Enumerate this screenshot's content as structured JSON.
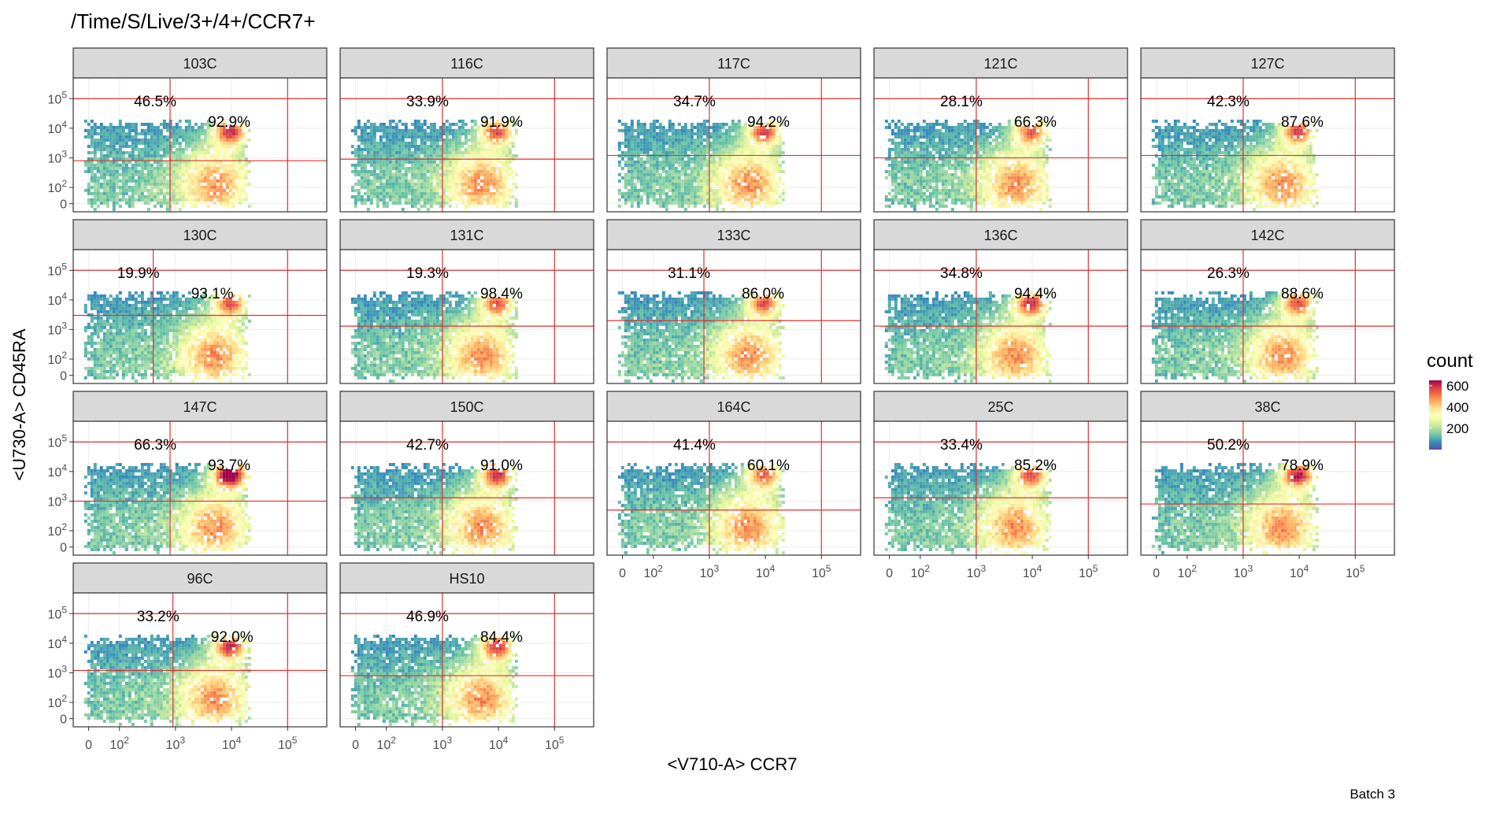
{
  "chart_data": {
    "type": "heatmap",
    "subtype": "faceted 2D density (flow cytometry)",
    "title": "/Time/S/Live/3+/4+/CCR7+",
    "xlabel": "<V710-A> CCR7",
    "ylabel": "<U730-A> CD45RA",
    "caption": "Batch 3",
    "legend": {
      "title": "count",
      "position": "right",
      "ticks": [
        "600",
        "400",
        "200"
      ],
      "tick_values": [
        600,
        400,
        200
      ],
      "range": [
        0,
        650
      ],
      "colors": [
        "#5E4FA2",
        "#3288BD",
        "#66C2A5",
        "#ABDDA4",
        "#E6F598",
        "#FFFFBF",
        "#FEE08B",
        "#FDAE61",
        "#F46D43",
        "#D53E4F",
        "#9E0142"
      ]
    },
    "axis_ticks": [
      "0",
      "10",
      "10",
      "10",
      "10"
    ],
    "axis_tick_exponents": [
      "",
      "2",
      "3",
      "4",
      "5"
    ],
    "axis_tick_values": [
      0,
      100,
      1000,
      10000,
      100000
    ],
    "grid": true,
    "facets": [
      {
        "label": "103C",
        "upper_pct": "46.5%",
        "lower_pct": "92.9%",
        "gate_x": 800,
        "gate_y": 800,
        "hotspot": 0.55
      },
      {
        "label": "116C",
        "upper_pct": "33.9%",
        "lower_pct": "91.9%",
        "gate_x": 1000,
        "gate_y": 900,
        "hotspot": 0.4
      },
      {
        "label": "117C",
        "upper_pct": "34.7%",
        "lower_pct": "94.2%",
        "gate_x": 1000,
        "gate_y": 1200,
        "hotspot": 0.45
      },
      {
        "label": "121C",
        "upper_pct": "28.1%",
        "lower_pct": "66.3%",
        "gate_x": 1000,
        "gate_y": 1000,
        "hotspot": 0.35
      },
      {
        "label": "127C",
        "upper_pct": "42.3%",
        "lower_pct": "87.6%",
        "gate_x": 1000,
        "gate_y": 1200,
        "hotspot": 0.45
      },
      {
        "label": "130C",
        "upper_pct": "19.9%",
        "lower_pct": "93.1%",
        "gate_x": 400,
        "gate_y": 3000,
        "hotspot": 0.4
      },
      {
        "label": "131C",
        "upper_pct": "19.3%",
        "lower_pct": "98.4%",
        "gate_x": 1000,
        "gate_y": 1300,
        "hotspot": 0.4
      },
      {
        "label": "133C",
        "upper_pct": "31.1%",
        "lower_pct": "86.0%",
        "gate_x": 800,
        "gate_y": 2000,
        "hotspot": 0.4
      },
      {
        "label": "136C",
        "upper_pct": "34.8%",
        "lower_pct": "94.4%",
        "gate_x": 1000,
        "gate_y": 1300,
        "hotspot": 0.55
      },
      {
        "label": "142C",
        "upper_pct": "26.3%",
        "lower_pct": "88.6%",
        "gate_x": 1000,
        "gate_y": 1300,
        "hotspot": 0.4
      },
      {
        "label": "147C",
        "upper_pct": "66.3%",
        "lower_pct": "93.7%",
        "gate_x": 800,
        "gate_y": 1000,
        "hotspot": 0.9
      },
      {
        "label": "150C",
        "upper_pct": "42.7%",
        "lower_pct": "91.0%",
        "gate_x": 1000,
        "gate_y": 1300,
        "hotspot": 0.55
      },
      {
        "label": "164C",
        "upper_pct": "41.4%",
        "lower_pct": "60.1%",
        "gate_x": 1000,
        "gate_y": 500,
        "hotspot": 0.35
      },
      {
        "label": "25C",
        "upper_pct": "33.4%",
        "lower_pct": "85.2%",
        "gate_x": 1000,
        "gate_y": 1300,
        "hotspot": 0.4
      },
      {
        "label": "38C",
        "upper_pct": "50.2%",
        "lower_pct": "78.9%",
        "gate_x": 1000,
        "gate_y": 800,
        "hotspot": 0.6
      },
      {
        "label": "96C",
        "upper_pct": "33.2%",
        "lower_pct": "92.0%",
        "gate_x": 900,
        "gate_y": 1200,
        "hotspot": 0.55
      },
      {
        "label": "HS10",
        "upper_pct": "46.9%",
        "lower_pct": "84.4%",
        "gate_x": 1000,
        "gate_y": 800,
        "hotspot": 0.5
      }
    ]
  }
}
